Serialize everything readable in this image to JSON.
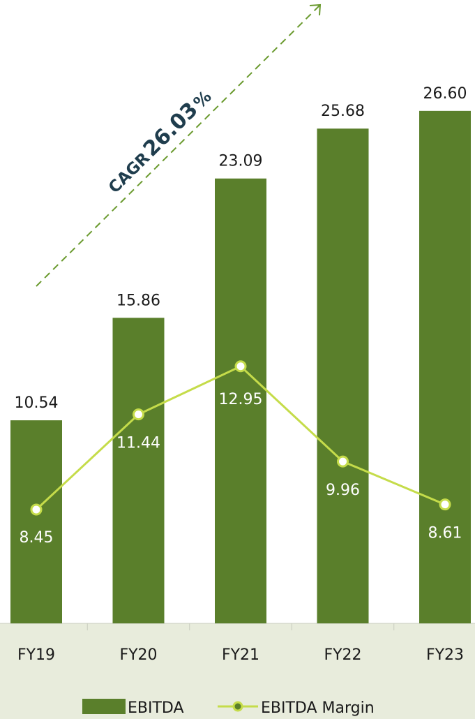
{
  "chart_data": {
    "type": "bar",
    "categories": [
      "FY19",
      "FY20",
      "FY21",
      "FY22",
      "FY23"
    ],
    "series": [
      {
        "name": "EBITDA",
        "type": "bar",
        "values": [
          10.54,
          15.86,
          23.09,
          25.68,
          26.6
        ],
        "color": "#5a7f2b"
      },
      {
        "name": "EBITDA Margin",
        "type": "line",
        "values": [
          8.45,
          11.44,
          12.95,
          9.96,
          8.61
        ],
        "color": "#c5dc4a"
      }
    ],
    "annotation": {
      "prefix": "CAGR",
      "value": "26.03",
      "unit": "%"
    },
    "legend": {
      "position": "bottom"
    },
    "colors": {
      "bar": "#5a7f2b",
      "line": "#c5dc4a",
      "axis_band": "#e8ecdc",
      "arrow": "#6a9a2e",
      "annotation": "#1f3d4d"
    }
  }
}
